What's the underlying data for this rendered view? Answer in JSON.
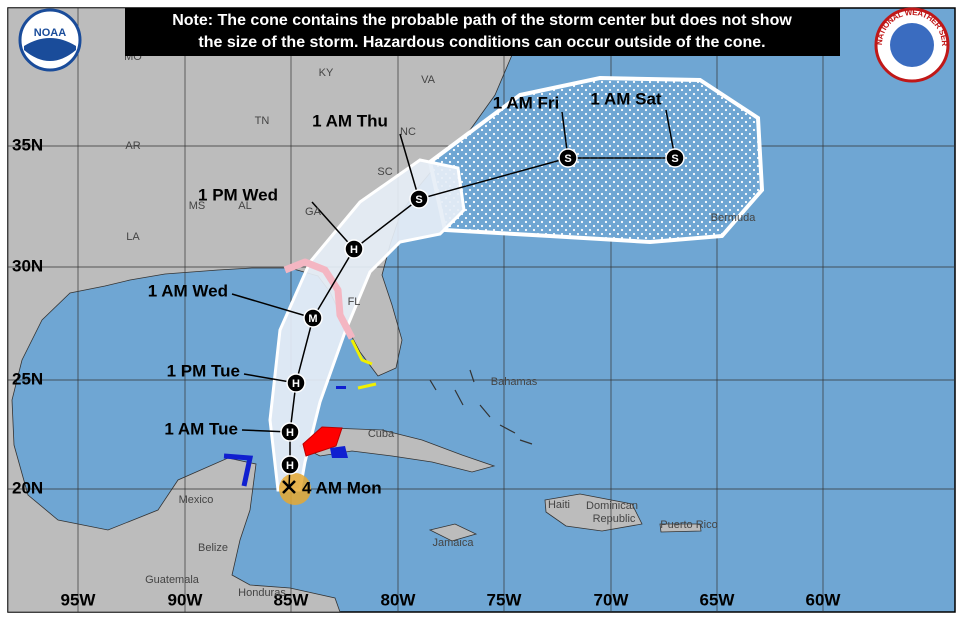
{
  "note": [
    "Note: The cone contains the probable path of the storm center but does not show",
    "the size of the storm. Hazardous conditions can occur outside of the cone."
  ],
  "logos": {
    "noaa": "NOAA",
    "nws": "NATIONAL WEATHER SERVICE"
  },
  "map": {
    "lat_labels": [
      "35N",
      "30N",
      "25N",
      "20N"
    ],
    "lon_labels": [
      "95W",
      "90W",
      "85W",
      "80W",
      "75W",
      "70W",
      "65W",
      "60W"
    ],
    "places": [
      "MO",
      "KY",
      "VA",
      "TN",
      "NC",
      "AR",
      "SC",
      "MS",
      "AL",
      "GA",
      "LA",
      "FL",
      "Bermuda",
      "Bahamas",
      "Cuba",
      "Mexico",
      "Belize",
      "Guatemala",
      "Honduras",
      "Haiti",
      "Dominican",
      "Republic",
      "Puerto Rico",
      "Jamaica"
    ],
    "forecast_points": [
      {
        "time": "4 AM Mon"
      },
      {
        "symbol": "H"
      },
      {
        "time": "1 AM Tue",
        "symbol": "H"
      },
      {
        "time": "1 PM Tue",
        "symbol": "H"
      },
      {
        "time": "1 AM Wed",
        "symbol": "M"
      },
      {
        "time": "1 PM Wed",
        "symbol": "H"
      },
      {
        "time": "1 AM Thu",
        "symbol": "S"
      },
      {
        "time": "1 AM Fri",
        "symbol": "S"
      },
      {
        "time": "1 AM Sat",
        "symbol": "S"
      }
    ]
  }
}
